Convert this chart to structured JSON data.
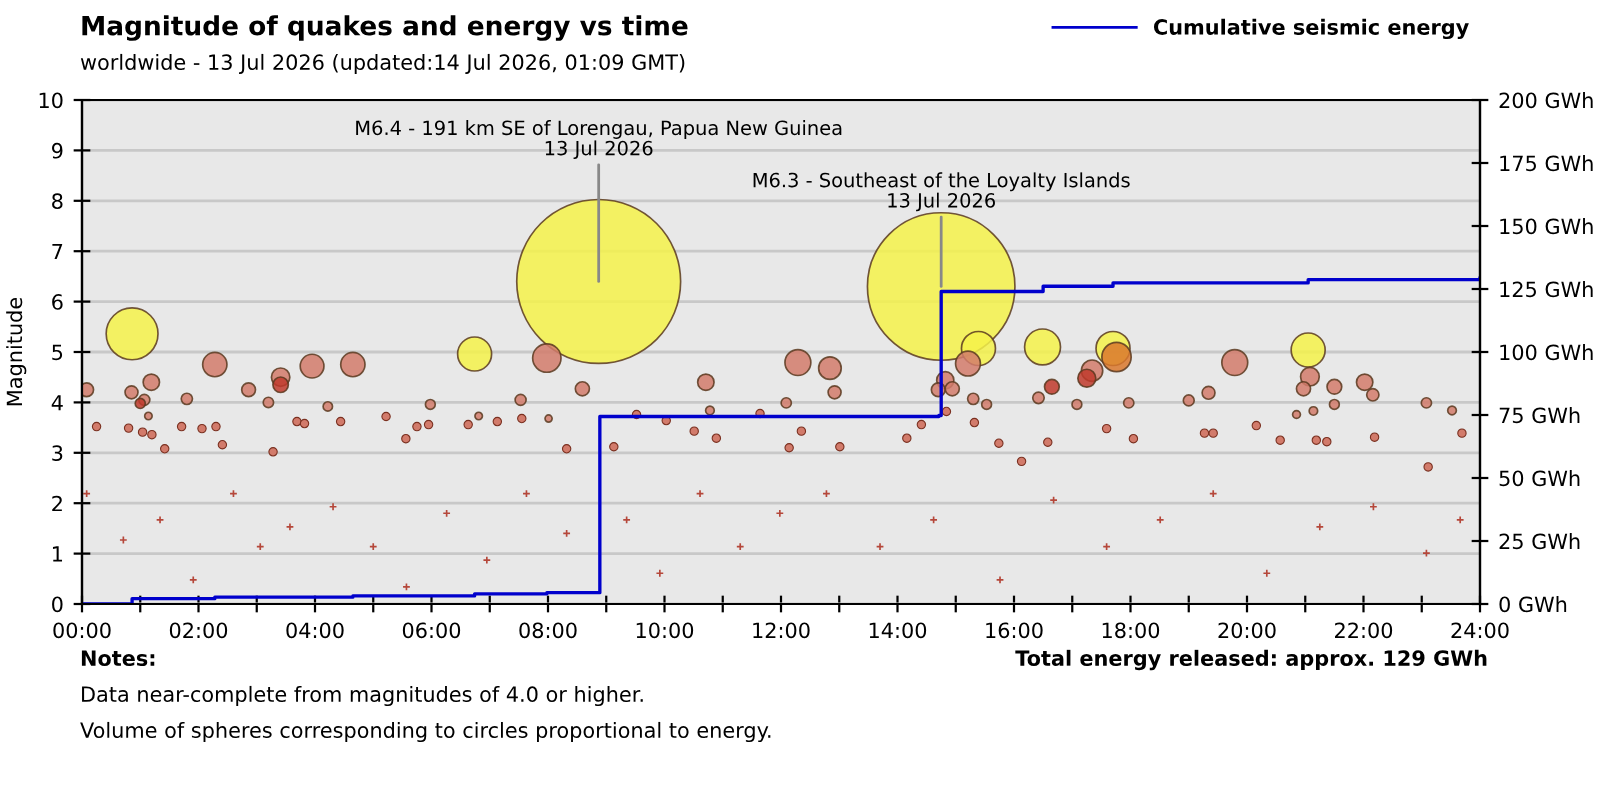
{
  "chart_data": {
    "type": "bubble",
    "title": "Magnitude of quakes and energy vs time",
    "subtitle": "worldwide - 13 Jul 2026 (updated:14 Jul 2026, 01:09 GMT)",
    "ylabel": "Magnitude",
    "xlim": [
      0,
      24
    ],
    "xticks": [
      {
        "value": 0,
        "label": "00:00"
      },
      {
        "value": 1,
        "label": null
      },
      {
        "value": 2,
        "label": "02:00"
      },
      {
        "value": 3,
        "label": null
      },
      {
        "value": 4,
        "label": "04:00"
      },
      {
        "value": 5,
        "label": null
      },
      {
        "value": 6,
        "label": "06:00"
      },
      {
        "value": 7,
        "label": null
      },
      {
        "value": 8,
        "label": "08:00"
      },
      {
        "value": 9,
        "label": null
      },
      {
        "value": 10,
        "label": "10:00"
      },
      {
        "value": 11,
        "label": null
      },
      {
        "value": 12,
        "label": "12:00"
      },
      {
        "value": 13,
        "label": null
      },
      {
        "value": 14,
        "label": "14:00"
      },
      {
        "value": 15,
        "label": null
      },
      {
        "value": 16,
        "label": "16:00"
      },
      {
        "value": 17,
        "label": null
      },
      {
        "value": 18,
        "label": "18:00"
      },
      {
        "value": 19,
        "label": null
      },
      {
        "value": 20,
        "label": "20:00"
      },
      {
        "value": 21,
        "label": null
      },
      {
        "value": 22,
        "label": "22:00"
      },
      {
        "value": 23,
        "label": null
      },
      {
        "value": 24,
        "label": "24:00"
      }
    ],
    "ylim": [
      0,
      10
    ],
    "yticks": [
      0,
      1,
      2,
      3,
      4,
      5,
      6,
      7,
      8,
      9,
      10
    ],
    "y2lim": [
      0,
      200
    ],
    "y2ticks": [
      {
        "value": 0,
        "label": "0 GWh"
      },
      {
        "value": 25,
        "label": "25 GWh"
      },
      {
        "value": 50,
        "label": "50 GWh"
      },
      {
        "value": 75,
        "label": "75 GWh"
      },
      {
        "value": 100,
        "label": "100 GWh"
      },
      {
        "value": 125,
        "label": "125 GWh"
      },
      {
        "value": 150,
        "label": "150 GWh"
      },
      {
        "value": 175,
        "label": "175 GWh"
      },
      {
        "value": 200,
        "label": "200 GWh"
      }
    ],
    "grid": "y",
    "legend": "top right",
    "series": [
      {
        "color": "#f5f24a",
        "x": [
          0.86,
          8.87,
          6.74,
          14.75,
          15.39,
          16.49,
          17.7,
          21.05
        ],
        "values": [
          5.36,
          6.4,
          4.96,
          6.3,
          5.07,
          5.1,
          5.07,
          5.04
        ],
        "sizes": [
          0.1,
          1,
          0.043,
          0.81,
          0.043,
          0.048,
          0.043,
          0.043
        ]
      },
      {
        "x": [
          0.08,
          0.85,
          1.19,
          1.07,
          1.0,
          1.14,
          2.28,
          1.8,
          2.86,
          3.2,
          3.41,
          3.41,
          3.95,
          4.65,
          4.22,
          5.98,
          7.53,
          7.98,
          8.59,
          10.71,
          12.29,
          12.09,
          10.78,
          8.01,
          6.81,
          12.84,
          12.92,
          15.21,
          14.82,
          14.7,
          14.94,
          15.3,
          15.53,
          16.42,
          16.65,
          17.34,
          17.25,
          17.76,
          17.08,
          17.97,
          19.0,
          19.34,
          19.79,
          21.08,
          20.97,
          21.5,
          21.5,
          22.02,
          22.16,
          23.08,
          23.52,
          21.14,
          20.85
        ],
        "values": [
          4.25,
          4.2,
          4.4,
          4.05,
          3.98,
          3.73,
          4.75,
          4.07,
          4.25,
          4.0,
          4.5,
          4.35,
          4.72,
          4.75,
          3.92,
          3.96,
          4.05,
          4.88,
          4.27,
          4.4,
          4.79,
          3.99,
          3.84,
          3.68,
          3.73,
          4.68,
          4.2,
          4.77,
          4.44,
          4.25,
          4.27,
          4.07,
          3.96,
          4.09,
          4.31,
          4.63,
          4.48,
          4.9,
          3.96,
          3.99,
          4.04,
          4.19,
          4.79,
          4.51,
          4.27,
          4.31,
          3.96,
          4.4,
          4.15,
          3.99,
          3.84,
          3.83,
          3.76
        ],
        "sizes": [
          0.0071,
          0.0063,
          0.01,
          0.0045,
          0.0038,
          0.0021,
          0.022,
          0.0047,
          0.0071,
          0.004,
          0.0126,
          0.0089,
          0.021,
          0.022,
          0.0033,
          0.0036,
          0.0045,
          0.03,
          0.0074,
          0.01,
          0.025,
          0.0039,
          0.0028,
          0.0019,
          0.0021,
          0.019,
          0.0063,
          0.023,
          0.011,
          0.0071,
          0.0074,
          0.0047,
          0.0036,
          0.0049,
          0.0081,
          0.017,
          0.012,
          0.032,
          0.0036,
          0.0039,
          0.0044,
          0.0062,
          0.025,
          0.013,
          0.0074,
          0.0081,
          0.0036,
          0.01,
          0.0056,
          0.0039,
          0.0028,
          0.0027,
          0.0023
        ],
        "colors": [
          "#d27b6b",
          "#d27b6b",
          "#d27b6b",
          "#d27b6b",
          "#c0392b",
          "#d27b6b",
          "#d27b6b",
          "#d27b6b",
          "#d27b6b",
          "#d27b6b",
          "#d27b6b",
          "#c0392b",
          "#d27b6b",
          "#d27b6b",
          "#d27b6b",
          "#d27b6b",
          "#d27b6b",
          "#d27b6b",
          "#d27b6b",
          "#d27b6b",
          "#d27b6b",
          "#d27b6b",
          "#d27b6b",
          "#d27b6b",
          "#d27b6b",
          "#d27b6b",
          "#d27b6b",
          "#d27b6b",
          "#d27b6b",
          "#d27b6b",
          "#d27b6b",
          "#d27b6b",
          "#d27b6b",
          "#d27b6b",
          "#c0392b",
          "#d27b6b",
          "#c0392b",
          "#d9782d",
          "#d27b6b",
          "#d27b6b",
          "#d27b6b",
          "#d27b6b",
          "#d27b6b",
          "#d27b6b",
          "#d27b6b",
          "#d27b6b",
          "#d27b6b",
          "#d27b6b",
          "#d27b6b",
          "#d27b6b",
          "#d27b6b",
          "#d27b6b",
          "#d27b6b"
        ]
      },
      {
        "type": "scatter",
        "marker": "circle",
        "color": "#d27b6b",
        "x": [
          0.25,
          0.8,
          1.04,
          1.2,
          1.71,
          2.06,
          2.3,
          2.41,
          1.42,
          3.28,
          3.69,
          3.82,
          4.44,
          5.22,
          5.56,
          5.75,
          5.95,
          6.63,
          7.13,
          7.55,
          8.32,
          9.13,
          9.52,
          10.03,
          10.51,
          10.89,
          11.64,
          12.35,
          12.14,
          13.01,
          14.16,
          14.41,
          14.84,
          15.32,
          15.74,
          16.13,
          16.58,
          17.59,
          18.05,
          19.27,
          19.42,
          20.16,
          20.57,
          21.19,
          21.37,
          22.19,
          23.69,
          23.11
        ],
        "values": [
          3.52,
          3.49,
          3.41,
          3.36,
          3.52,
          3.48,
          3.52,
          3.16,
          3.08,
          3.02,
          3.62,
          3.58,
          3.62,
          3.72,
          3.28,
          3.52,
          3.56,
          3.56,
          3.62,
          3.68,
          3.08,
          3.12,
          3.76,
          3.64,
          3.43,
          3.29,
          3.78,
          3.43,
          3.1,
          3.12,
          3.29,
          3.56,
          3.82,
          3.6,
          3.19,
          2.83,
          3.21,
          3.48,
          3.28,
          3.39,
          3.39,
          3.54,
          3.25,
          3.25,
          3.22,
          3.31,
          3.39,
          2.72
        ]
      },
      {
        "type": "scatter",
        "marker": "cross",
        "color": "#b5473a",
        "x": [
          0.08,
          0.71,
          1.34,
          1.91,
          2.6,
          3.06,
          3.57,
          4.31,
          5.0,
          5.57,
          6.26,
          6.95,
          7.63,
          8.32,
          9.35,
          9.92,
          10.61,
          11.3,
          11.98,
          12.78,
          13.7,
          14.62,
          15.76,
          16.68,
          17.59,
          18.51,
          19.42,
          20.34,
          21.25,
          22.17,
          23.08,
          23.66
        ],
        "values": [
          2.19,
          1.27,
          1.67,
          0.48,
          2.19,
          1.14,
          1.53,
          1.93,
          1.14,
          0.34,
          1.8,
          0.87,
          2.19,
          1.4,
          1.67,
          0.61,
          2.19,
          1.14,
          1.8,
          2.19,
          1.14,
          1.67,
          0.48,
          2.06,
          1.14,
          1.67,
          2.19,
          0.61,
          1.53,
          1.93,
          1.01,
          1.67
        ]
      },
      {
        "type": "step",
        "axis": "y2",
        "name": "Cumulative seismic energy",
        "color": "#0000cc",
        "x": [
          0,
          0.86,
          2.28,
          4.65,
          6.74,
          7.98,
          8.89,
          12.33,
          14.71,
          14.75,
          16.5,
          17.7,
          21.05,
          24
        ],
        "values": [
          0,
          2.1,
          2.7,
          3.2,
          4.0,
          4.5,
          74.4,
          74.4,
          74.8,
          124.0,
          126.1,
          127.4,
          128.7,
          129.3
        ]
      }
    ],
    "annotations": [
      {
        "text": "M6.4 - 191 km SE of Lorengau, Papua New Guinea\n13 Jul 2026",
        "x": 8.87,
        "y": 6.4
      },
      {
        "text": "M6.3 - Southeast of the Loyalty Islands\n13 Jul 2026",
        "x": 14.75,
        "y": 6.3
      },
      "Notes:",
      "Data near-complete from magnitudes of 4.0 or higher.",
      "Volume of spheres corresponding to circles proportional to energy.",
      "Total energy released: approx. 129 GWh"
    ]
  }
}
